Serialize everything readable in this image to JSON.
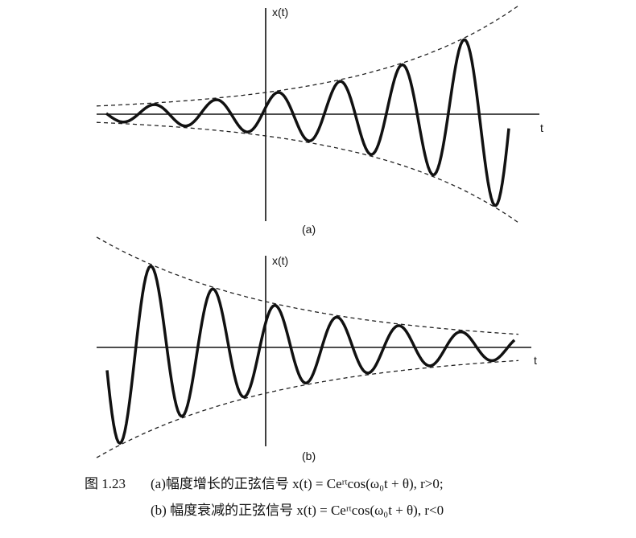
{
  "panels": [
    {
      "label": "(a)",
      "y_axis_label": "x(t)",
      "x_axis_label": "t"
    },
    {
      "label": "(b)",
      "y_axis_label": "x(t)",
      "x_axis_label": "t"
    }
  ],
  "caption": {
    "number": "图 1.23",
    "line_a": "(a)幅度增长的正弦信号 x(t) = Ceʳᵗcos(ω₀t + θ), r>0;",
    "line_b": "(b) 幅度衰减的正弦信号 x(t) = Ceʳᵗcos(ω₀t + θ), r<0"
  }
}
